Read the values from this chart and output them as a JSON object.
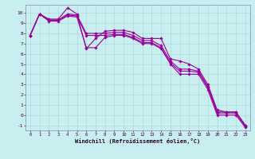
{
  "xlabel": "Windchill (Refroidissement éolien,°C)",
  "background_color": "#c8eef0",
  "grid_color": "#a8d4d8",
  "line_color": "#990099",
  "marker": "D",
  "marker_size": 1.8,
  "line_width": 0.8,
  "xlim": [
    -0.5,
    23.5
  ],
  "ylim": [
    -1.5,
    10.8
  ],
  "yticks": [
    -1,
    0,
    1,
    2,
    3,
    4,
    5,
    6,
    7,
    8,
    9,
    10
  ],
  "xticks": [
    0,
    1,
    2,
    3,
    4,
    5,
    6,
    7,
    8,
    9,
    10,
    11,
    12,
    13,
    14,
    15,
    16,
    17,
    18,
    19,
    20,
    21,
    22,
    23
  ],
  "series": [
    [
      7.8,
      9.9,
      9.4,
      9.4,
      10.5,
      9.9,
      6.5,
      7.5,
      8.2,
      8.3,
      8.3,
      8.1,
      7.5,
      7.5,
      7.5,
      5.5,
      5.3,
      5.0,
      4.5,
      3.0,
      0.5,
      0.3,
      0.3,
      -1.0
    ],
    [
      7.8,
      9.9,
      9.3,
      9.3,
      9.9,
      9.8,
      8.0,
      8.0,
      8.0,
      8.1,
      8.1,
      7.8,
      7.3,
      7.3,
      6.8,
      5.3,
      4.5,
      4.5,
      4.3,
      2.8,
      0.3,
      0.3,
      0.3,
      -1.0
    ],
    [
      7.8,
      9.9,
      9.3,
      9.3,
      9.8,
      9.7,
      7.8,
      7.8,
      7.8,
      7.9,
      7.9,
      7.6,
      7.1,
      7.1,
      6.6,
      5.1,
      4.3,
      4.3,
      4.2,
      2.7,
      0.2,
      0.2,
      0.2,
      -1.1
    ],
    [
      7.8,
      9.9,
      9.2,
      9.2,
      9.7,
      9.6,
      6.6,
      6.6,
      7.6,
      7.8,
      7.8,
      7.5,
      7.0,
      7.0,
      6.5,
      5.0,
      4.0,
      4.0,
      4.0,
      2.5,
      0.0,
      0.0,
      0.0,
      -1.2
    ]
  ]
}
